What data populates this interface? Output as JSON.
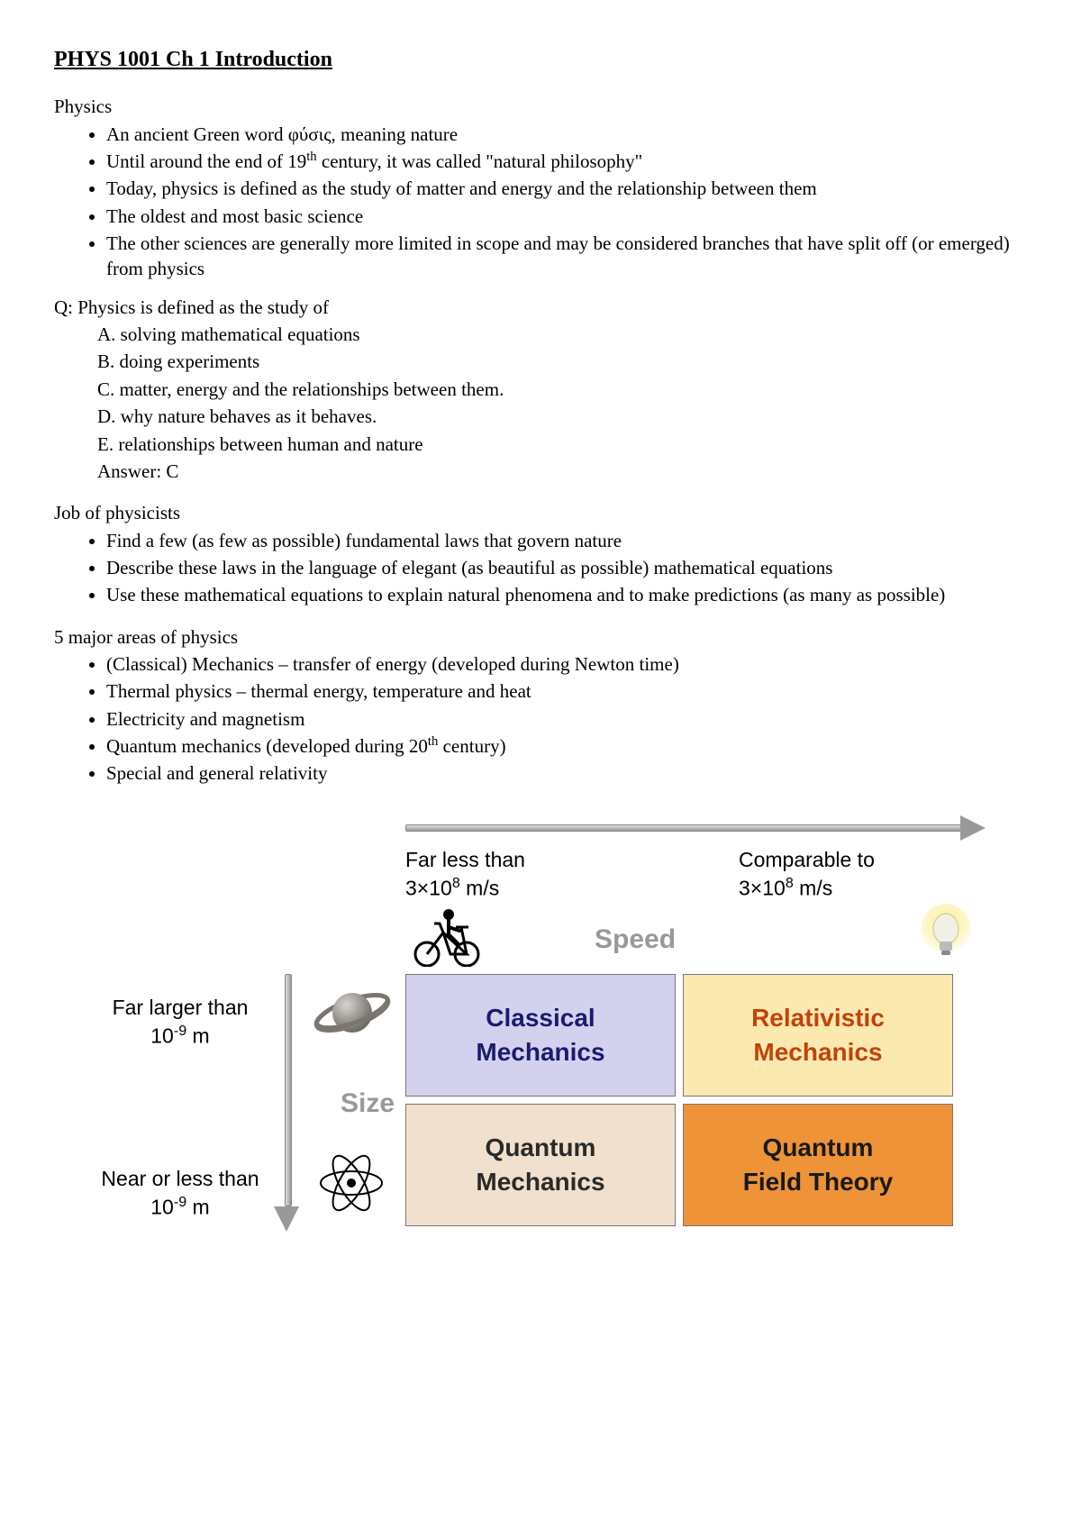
{
  "page_title": "PHYS 1001 Ch 1 Introduction",
  "sections": {
    "physics": {
      "heading": "Physics",
      "bullets": [
        "An ancient Green word φύσις, meaning nature",
        "Until around the end of 19<sup>th</sup> century, it was called \"natural philosophy\"",
        "Today, physics is defined as the study of matter and energy and the relationship between them",
        "The oldest and most basic science",
        "The other sciences are generally more limited in scope and may be considered branches that have split off (or emerged) from physics"
      ]
    },
    "question": {
      "text": "Q: Physics is defined as the study of",
      "options": [
        {
          "letter": "A.",
          "text": "solving mathematical equations"
        },
        {
          "letter": "B.",
          "text": "doing experiments"
        },
        {
          "letter": "C.",
          "text": "matter, energy and the relationships between them."
        },
        {
          "letter": "D.",
          "text": "why nature behaves as it behaves."
        },
        {
          "letter": "E.",
          "text": "relationships between human and nature"
        }
      ],
      "answer": "Answer: C"
    },
    "job": {
      "heading": "Job of physicists",
      "bullets": [
        "Find a few (as few as possible) fundamental laws that govern nature",
        "Describe these laws in the language of elegant (as beautiful as possible) mathematical equations",
        "Use these mathematical equations to explain natural phenomena and to make predictions (as many as possible)"
      ]
    },
    "areas": {
      "heading": "5 major areas of physics",
      "bullets": [
        "(Classical) Mechanics – transfer of energy (developed during Newton time)",
        "Thermal physics – thermal energy, temperature and heat",
        "Electricity and magnetism",
        "Quantum mechanics (developed during 20<sup>th</sup> century)",
        "Special and general relativity"
      ]
    }
  },
  "diagram": {
    "axes": {
      "speed_label": "Speed",
      "speed_low": "Far less than<br>3×10<sup>8</sup> m/s",
      "speed_high": "Comparable to<br>3×10<sup>8</sup> m/s",
      "size_label": "Size",
      "size_big": "Far larger than<br>10<sup>-9</sup> m",
      "size_small": "Near or less than<br>10<sup>-9</sup> m"
    },
    "cells": [
      {
        "label": "Classical<br>Mechanics",
        "bg": "#d3d1ee",
        "fg": "#1b1b6f"
      },
      {
        "label": "Relativistic<br>Mechanics",
        "bg": "#fbe9b0",
        "fg": "#c2430a"
      },
      {
        "label": "Quantum<br>Mechanics",
        "bg": "#f1e0cd",
        "fg": "#2a2a2a"
      },
      {
        "label": "Quantum<br>Field Theory",
        "bg": "#ee9338",
        "fg": "#1a1a1a"
      }
    ],
    "icons": {
      "saturn_fill": "#8f8b87",
      "saturn_ring": "#6e6a66",
      "bulb_glow": "#f6e75a",
      "bulb_body": "#e8e8e8",
      "arrow_color": "#999999"
    }
  }
}
